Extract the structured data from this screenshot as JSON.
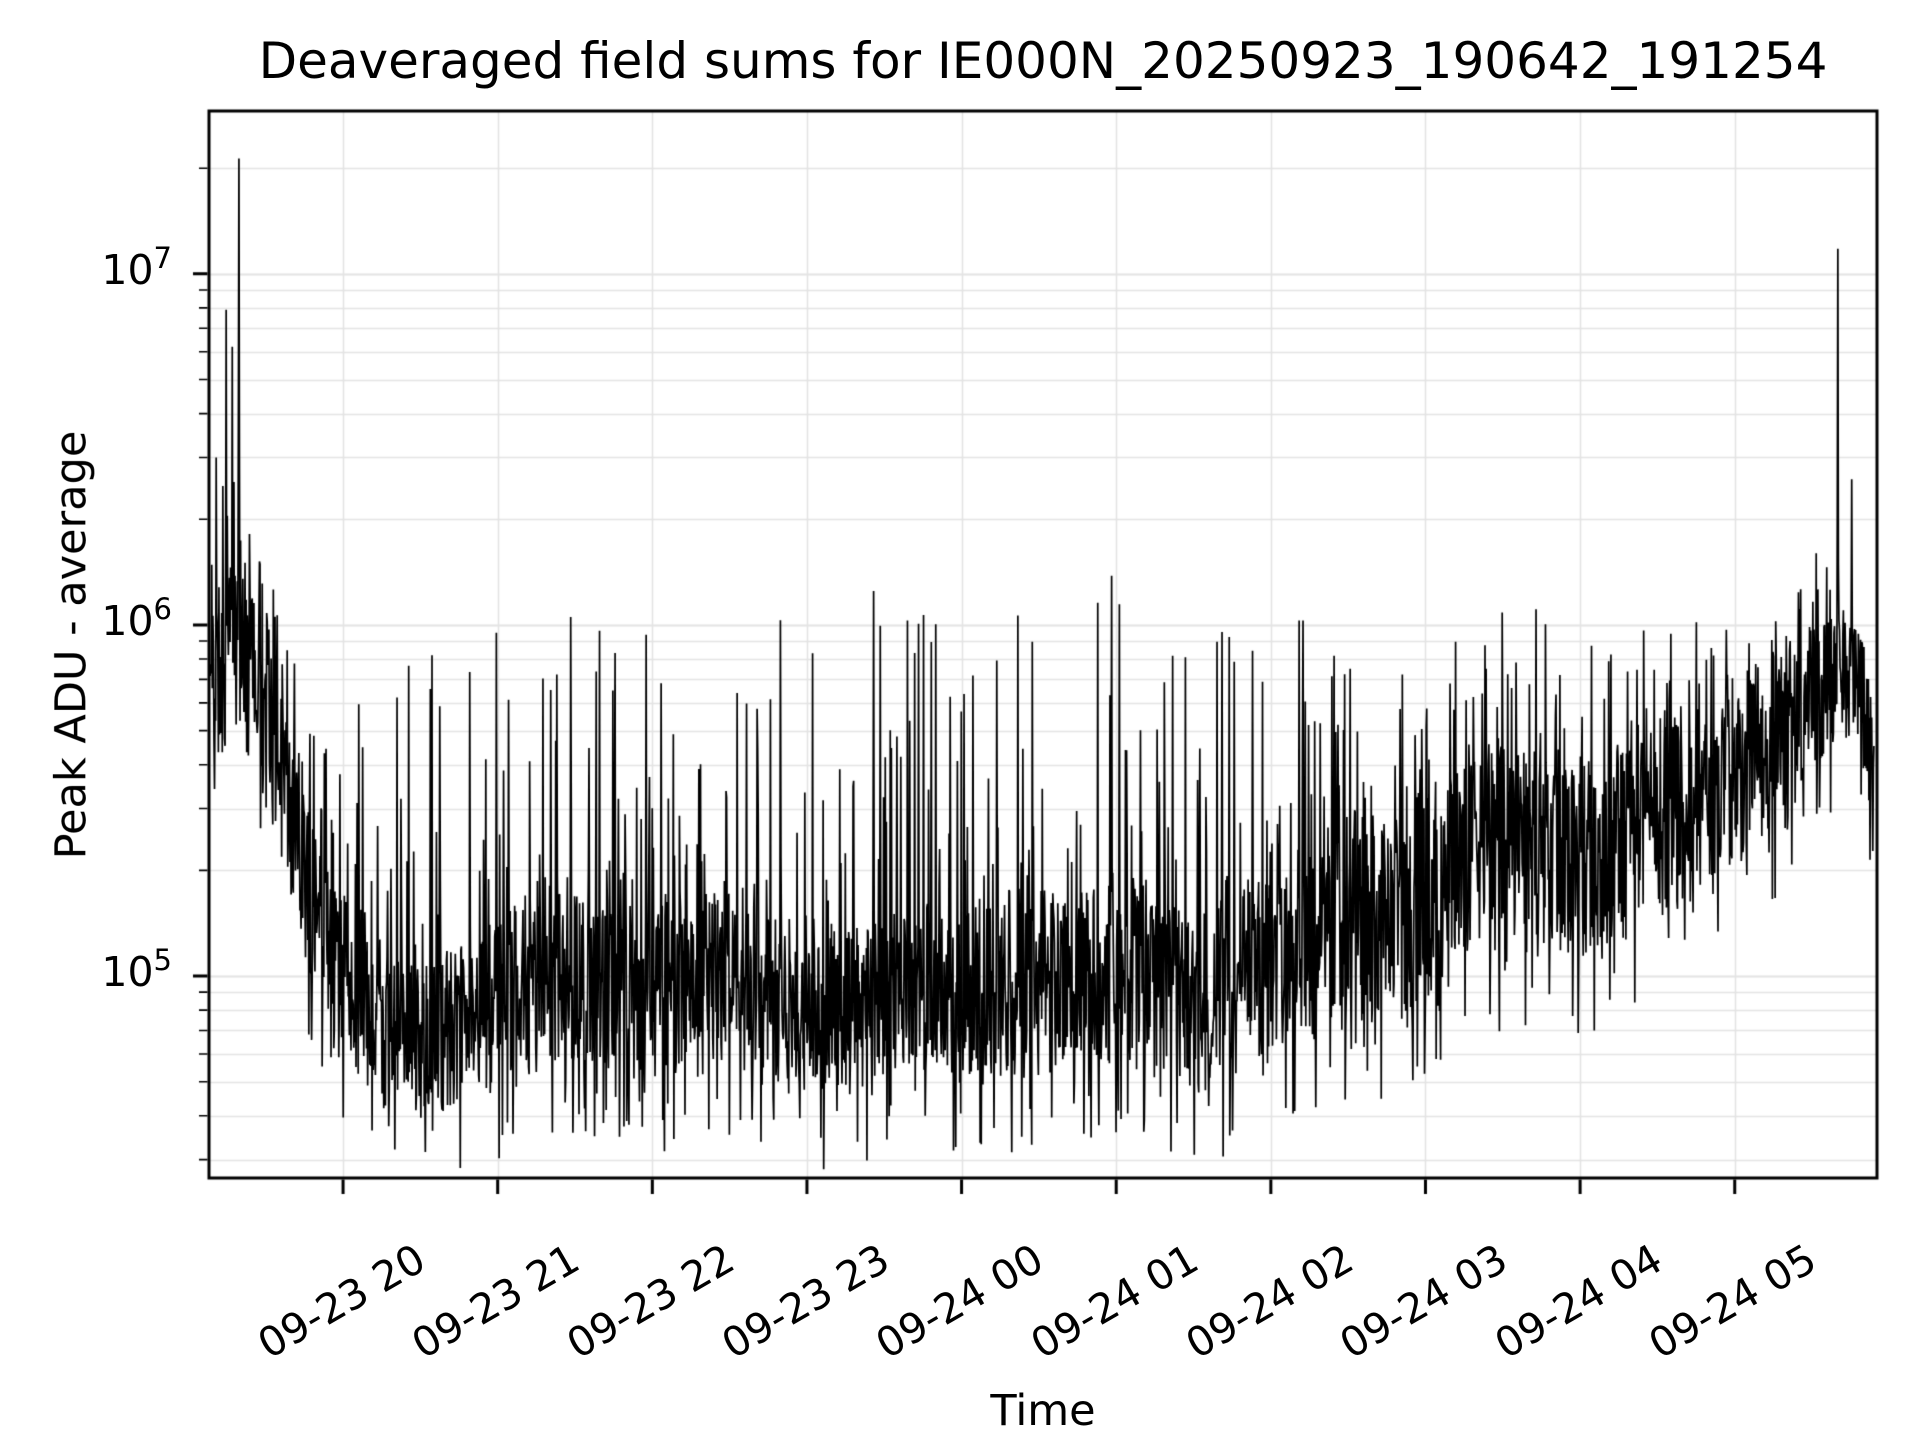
{
  "page": {
    "background": "#ffffff"
  },
  "chart_data": {
    "type": "line",
    "title": "Deaveraged field sums for IE000N_20250923_190642_191254",
    "xlabel": "Time",
    "ylabel": "Peak ADU - average",
    "yscale": "log",
    "line_color": "#000000",
    "grid_color": "#e4e4e4",
    "spine_color": "#000000",
    "ylim": [
      26600,
      29100000
    ],
    "x_range_hours": [
      19.133,
      29.92
    ],
    "data_t_hours": [
      19.14,
      29.9
    ],
    "x_ticks": [
      {
        "t": 20,
        "label": "09-23 20"
      },
      {
        "t": 21,
        "label": "09-23 21"
      },
      {
        "t": 22,
        "label": "09-23 22"
      },
      {
        "t": 23,
        "label": "09-23 23"
      },
      {
        "t": 24,
        "label": "09-24 00"
      },
      {
        "t": 25,
        "label": "09-24 01"
      },
      {
        "t": 26,
        "label": "09-24 02"
      },
      {
        "t": 27,
        "label": "09-24 03"
      },
      {
        "t": 28,
        "label": "09-24 04"
      },
      {
        "t": 29,
        "label": "09-24 05"
      }
    ],
    "y_ticks": [
      {
        "exp": 5,
        "value": 100000
      },
      {
        "exp": 6,
        "value": 1000000
      },
      {
        "exp": 7,
        "value": 10000000
      }
    ],
    "grid": {
      "vertical_major": true,
      "horizontal_major": true,
      "horizontal_minor": true
    },
    "n_points": 3000,
    "seed": 11,
    "spike_prob": 0.17,
    "dip_prob": 0.06,
    "spike_power": 2.6,
    "envelope_log10": [
      [
        19.13,
        5.55,
        6.08,
        6.42
      ],
      [
        19.22,
        5.62,
        6.12,
        6.55
      ],
      [
        19.32,
        5.68,
        6.15,
        6.5
      ],
      [
        19.42,
        5.62,
        6.08,
        6.35
      ],
      [
        19.52,
        5.52,
        5.95,
        6.2
      ],
      [
        19.62,
        5.3,
        5.75,
        6.0
      ],
      [
        19.72,
        5.1,
        5.55,
        5.9
      ],
      [
        19.82,
        4.95,
        5.38,
        5.8
      ],
      [
        19.95,
        4.82,
        5.22,
        5.7
      ],
      [
        20.1,
        4.72,
        5.12,
        5.9
      ],
      [
        20.3,
        4.66,
        5.06,
        5.85
      ],
      [
        20.55,
        4.66,
        5.08,
        5.92
      ],
      [
        20.8,
        4.68,
        5.13,
        6.0
      ],
      [
        21.1,
        4.7,
        5.17,
        6.02
      ],
      [
        21.5,
        4.72,
        5.2,
        6.06
      ],
      [
        21.9,
        4.7,
        5.17,
        6.05
      ],
      [
        22.3,
        4.71,
        5.18,
        6.07
      ],
      [
        22.7,
        4.69,
        5.15,
        6.04
      ],
      [
        23.1,
        4.7,
        5.16,
        6.05
      ],
      [
        23.5,
        4.71,
        5.18,
        6.08
      ],
      [
        23.9,
        4.7,
        5.17,
        6.09
      ],
      [
        24.3,
        4.71,
        5.19,
        6.07
      ],
      [
        24.7,
        4.7,
        5.18,
        6.1
      ],
      [
        25.1,
        4.71,
        5.19,
        6.06
      ],
      [
        25.5,
        4.73,
        5.22,
        6.02
      ],
      [
        25.9,
        4.77,
        5.27,
        6.06
      ],
      [
        26.3,
        4.81,
        5.34,
        6.04
      ],
      [
        26.7,
        4.88,
        5.44,
        6.08
      ],
      [
        27.1,
        4.95,
        5.52,
        6.1
      ],
      [
        27.5,
        5.01,
        5.58,
        6.09
      ],
      [
        27.9,
        5.07,
        5.62,
        6.13
      ],
      [
        28.3,
        5.12,
        5.66,
        6.09
      ],
      [
        28.7,
        5.2,
        5.72,
        6.11
      ],
      [
        29.0,
        5.32,
        5.82,
        6.12
      ],
      [
        29.25,
        5.46,
        5.92,
        6.2
      ],
      [
        29.45,
        5.58,
        5.98,
        6.25
      ],
      [
        29.6,
        5.62,
        6.0,
        6.2
      ],
      [
        29.7,
        5.64,
        5.97,
        6.05
      ],
      [
        29.8,
        5.6,
        5.92,
        5.98
      ],
      [
        29.87,
        5.45,
        5.85,
        5.9
      ],
      [
        29.9,
        5.2,
        5.6,
        5.7
      ]
    ],
    "notable_spikes": [
      {
        "t": 19.18,
        "value": 3000000
      },
      {
        "t": 19.245,
        "value": 7900000
      },
      {
        "t": 19.285,
        "value": 6200000
      },
      {
        "t": 19.325,
        "value": 21300000
      },
      {
        "t": 23.43,
        "value": 1250000
      },
      {
        "t": 24.97,
        "value": 1380000
      },
      {
        "t": 29.665,
        "value": 11800000
      },
      {
        "t": 29.755,
        "value": 2600000
      }
    ]
  }
}
